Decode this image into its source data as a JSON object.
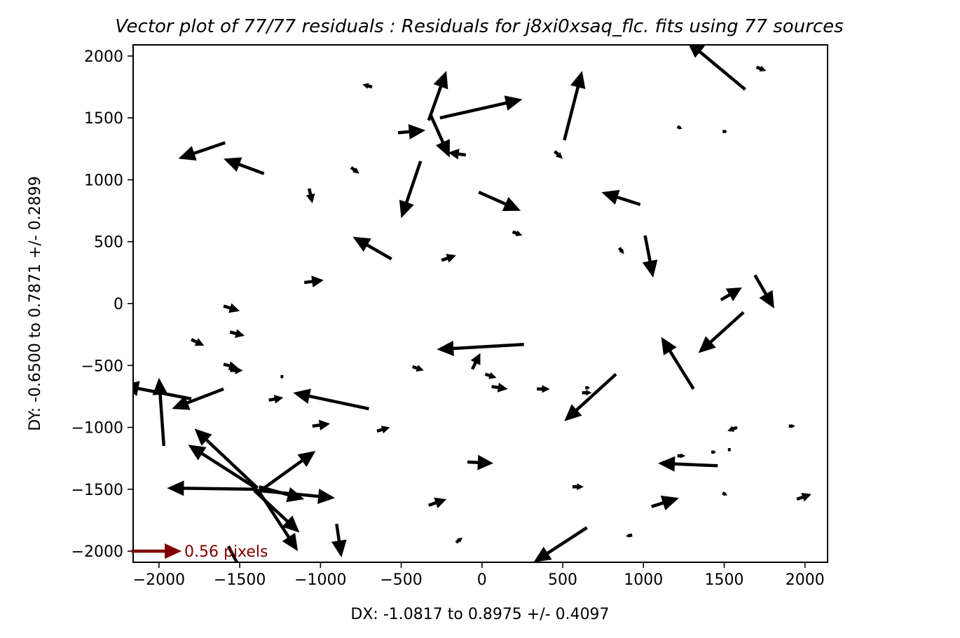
{
  "chart_data": {
    "type": "quiver",
    "title": "Vector plot of 77/77 residuals :  Residuals for j8xi0xsaq_flc. fits using 77 sources",
    "xlabel": "DX: -1.0817 to 0.8975 +/- 0.4097",
    "ylabel": "DY: -0.6500 to 0.7871 +/- 0.2899",
    "xlim": [
      -2160,
      2140
    ],
    "ylim": [
      -2090,
      2090
    ],
    "xticks": [
      -2000,
      -1500,
      -1000,
      -500,
      0,
      500,
      1000,
      1500,
      2000
    ],
    "xtick_labels": [
      "−2000",
      "−1500",
      "−1000",
      "−500",
      "0",
      "500",
      "1000",
      "1500",
      "2000"
    ],
    "yticks": [
      -2000,
      -1500,
      -1000,
      -500,
      0,
      500,
      1000,
      1500,
      2000
    ],
    "ytick_labels": [
      "−2000",
      "−1500",
      "−1000",
      "−500",
      "0",
      "500",
      "1000",
      "1500",
      "2000"
    ],
    "grid": false,
    "arrow_color": "#000000",
    "key": {
      "label": "0.56 pixels",
      "color": "#800000",
      "x": -2170,
      "y": -2000,
      "dx": 310,
      "dy": 0
    },
    "vectors": [
      {
        "x": 1630,
        "y": 1730,
        "dx": -360,
        "dy": 390
      },
      {
        "x": 1700,
        "y": 1910,
        "dx": 60,
        "dy": -30
      },
      {
        "x": -680,
        "y": 1750,
        "dx": -60,
        "dy": 20
      },
      {
        "x": -330,
        "y": 1480,
        "dx": 110,
        "dy": 400
      },
      {
        "x": -260,
        "y": 1500,
        "dx": 510,
        "dy": 150
      },
      {
        "x": 510,
        "y": 1320,
        "dx": 110,
        "dy": 560
      },
      {
        "x": -520,
        "y": 1380,
        "dx": 170,
        "dy": 20
      },
      {
        "x": -320,
        "y": 1530,
        "dx": 120,
        "dy": -350
      },
      {
        "x": -1590,
        "y": 1300,
        "dx": -290,
        "dy": -130
      },
      {
        "x": -1350,
        "y": 1050,
        "dx": -250,
        "dy": 120
      },
      {
        "x": -100,
        "y": 1200,
        "dx": -110,
        "dy": 20
      },
      {
        "x": 450,
        "y": 1230,
        "dx": 50,
        "dy": -60
      },
      {
        "x": 1210,
        "y": 1430,
        "dx": 30,
        "dy": -20
      },
      {
        "x": 1490,
        "y": 1390,
        "dx": 30,
        "dy": 0
      },
      {
        "x": -810,
        "y": 1100,
        "dx": 50,
        "dy": -50
      },
      {
        "x": -1070,
        "y": 930,
        "dx": 20,
        "dy": -120
      },
      {
        "x": -380,
        "y": 1150,
        "dx": -120,
        "dy": -460
      },
      {
        "x": -20,
        "y": 900,
        "dx": 260,
        "dy": -150
      },
      {
        "x": 980,
        "y": 800,
        "dx": -240,
        "dy": 100
      },
      {
        "x": 190,
        "y": 580,
        "dx": 60,
        "dy": -30
      },
      {
        "x": -560,
        "y": 360,
        "dx": -240,
        "dy": 180
      },
      {
        "x": 850,
        "y": 450,
        "dx": 30,
        "dy": -50
      },
      {
        "x": -250,
        "y": 350,
        "dx": 90,
        "dy": 40
      },
      {
        "x": 1010,
        "y": 550,
        "dx": 50,
        "dy": -340
      },
      {
        "x": -1100,
        "y": 170,
        "dx": 120,
        "dy": 20
      },
      {
        "x": 1480,
        "y": 30,
        "dx": 130,
        "dy": 100
      },
      {
        "x": 1690,
        "y": 230,
        "dx": 120,
        "dy": -270
      },
      {
        "x": -1600,
        "y": -20,
        "dx": 100,
        "dy": -40
      },
      {
        "x": -1560,
        "y": -230,
        "dx": 90,
        "dy": -30
      },
      {
        "x": -1800,
        "y": -290,
        "dx": 80,
        "dy": -50
      },
      {
        "x": 260,
        "y": -330,
        "dx": -540,
        "dy": -40
      },
      {
        "x": -60,
        "y": -530,
        "dx": 50,
        "dy": 130
      },
      {
        "x": 1620,
        "y": -70,
        "dx": -280,
        "dy": -330
      },
      {
        "x": 1310,
        "y": -690,
        "dx": -200,
        "dy": 420
      },
      {
        "x": -1600,
        "y": -490,
        "dx": 90,
        "dy": -30
      },
      {
        "x": -430,
        "y": -510,
        "dx": 70,
        "dy": -30
      },
      {
        "x": 20,
        "y": -570,
        "dx": 70,
        "dy": -30
      },
      {
        "x": 60,
        "y": -670,
        "dx": 100,
        "dy": -20
      },
      {
        "x": 340,
        "y": -690,
        "dx": 80,
        "dy": 0
      },
      {
        "x": 620,
        "y": -720,
        "dx": 60,
        "dy": 0
      },
      {
        "x": 830,
        "y": -570,
        "dx": -320,
        "dy": -380
      },
      {
        "x": -1800,
        "y": -770,
        "dx": -430,
        "dy": 110
      },
      {
        "x": -1970,
        "y": -1150,
        "dx": -30,
        "dy": 550
      },
      {
        "x": -1600,
        "y": -690,
        "dx": -320,
        "dy": -160
      },
      {
        "x": -1320,
        "y": -780,
        "dx": 90,
        "dy": 20
      },
      {
        "x": -700,
        "y": -850,
        "dx": -470,
        "dy": 130
      },
      {
        "x": -1050,
        "y": -990,
        "dx": 110,
        "dy": 20
      },
      {
        "x": -650,
        "y": -1030,
        "dx": 80,
        "dy": 30
      },
      {
        "x": 1580,
        "y": -1000,
        "dx": -60,
        "dy": -30
      },
      {
        "x": 1900,
        "y": -990,
        "dx": 40,
        "dy": 0
      },
      {
        "x": -1390,
        "y": -1490,
        "dx": -390,
        "dy": 480
      },
      {
        "x": -1360,
        "y": -1500,
        "dx": 330,
        "dy": 310
      },
      {
        "x": -1400,
        "y": -1490,
        "dx": -420,
        "dy": 350
      },
      {
        "x": -1410,
        "y": -1510,
        "dx": 280,
        "dy": -340
      },
      {
        "x": -1380,
        "y": -1520,
        "dx": 240,
        "dy": -480
      },
      {
        "x": -1390,
        "y": -1500,
        "dx": -560,
        "dy": 10
      },
      {
        "x": -1380,
        "y": -1480,
        "dx": 280,
        "dy": -100
      },
      {
        "x": -1390,
        "y": -1510,
        "dx": 480,
        "dy": -60
      },
      {
        "x": -1570,
        "y": -1960,
        "dx": 120,
        "dy": -300
      },
      {
        "x": -900,
        "y": -1780,
        "dx": 30,
        "dy": -270
      },
      {
        "x": -90,
        "y": -1280,
        "dx": 160,
        "dy": -10
      },
      {
        "x": 1460,
        "y": -1310,
        "dx": -370,
        "dy": 20
      },
      {
        "x": 1210,
        "y": -1230,
        "dx": 50,
        "dy": 0
      },
      {
        "x": 1420,
        "y": -1200,
        "dx": 30,
        "dy": 0
      },
      {
        "x": 560,
        "y": -1480,
        "dx": 70,
        "dy": 0
      },
      {
        "x": 1050,
        "y": -1640,
        "dx": 170,
        "dy": 70
      },
      {
        "x": 1490,
        "y": -1530,
        "dx": 30,
        "dy": -20
      },
      {
        "x": 1950,
        "y": -1580,
        "dx": 90,
        "dy": 40
      },
      {
        "x": -330,
        "y": -1630,
        "dx": 110,
        "dy": 50
      },
      {
        "x": -160,
        "y": -1930,
        "dx": 40,
        "dy": 40
      },
      {
        "x": 930,
        "y": -1870,
        "dx": -40,
        "dy": -10
      },
      {
        "x": 650,
        "y": -1810,
        "dx": -330,
        "dy": -280
      },
      {
        "x": -1560,
        "y": -540,
        "dx": 80,
        "dy": 0
      },
      {
        "x": -1230,
        "y": -590,
        "dx": -20,
        "dy": 0
      },
      {
        "x": 640,
        "y": -680,
        "dx": 30,
        "dy": 0
      },
      {
        "x": 1540,
        "y": -1180,
        "dx": -20,
        "dy": 0
      },
      {
        "x": -1370,
        "y": -1520,
        "dx": 0,
        "dy": 40
      }
    ]
  }
}
